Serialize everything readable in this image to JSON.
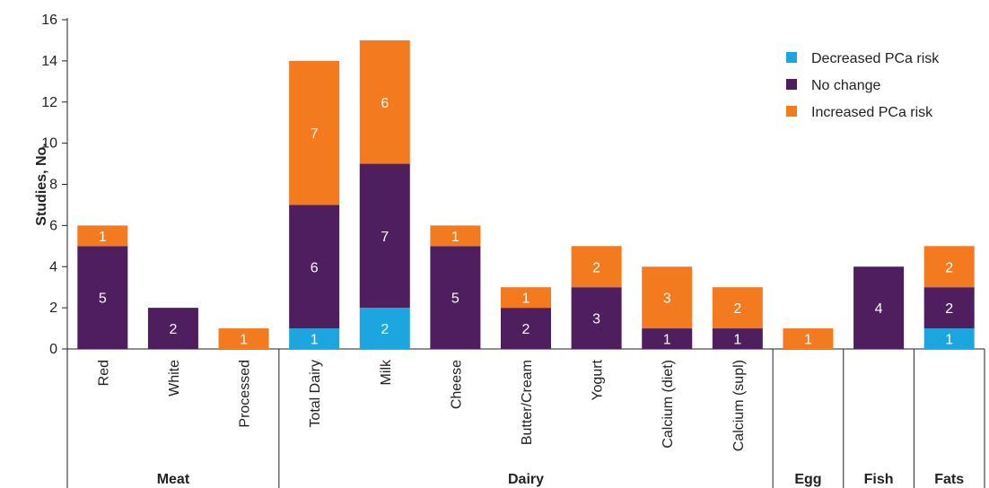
{
  "chart_data": {
    "type": "bar",
    "stacked": true,
    "ylabel": "Studies, No.",
    "ylim": [
      0,
      16
    ],
    "yticks": [
      0,
      2,
      4,
      6,
      8,
      10,
      12,
      14,
      16
    ],
    "categories": [
      "Red",
      "White",
      "Processed",
      "Total Dairy",
      "Milk",
      "Cheese",
      "Butter/Cream",
      "Yogurt",
      "Calcium (diet)",
      "Calcium (supl)",
      "",
      "",
      ""
    ],
    "groups": [
      {
        "name": "Meat",
        "start": 0,
        "end": 2
      },
      {
        "name": "Dairy",
        "start": 3,
        "end": 9
      },
      {
        "name": "Egg",
        "start": 10,
        "end": 10
      },
      {
        "name": "Fish",
        "start": 11,
        "end": 11
      },
      {
        "name": "Fats",
        "start": 12,
        "end": 12
      }
    ],
    "series": [
      {
        "name": "Decreased PCa risk",
        "color": "#1BA6DF",
        "values": [
          0,
          0,
          0,
          1,
          2,
          0,
          0,
          0,
          0,
          0,
          0,
          0,
          1
        ]
      },
      {
        "name": "No change",
        "color": "#4E1E5E",
        "values": [
          5,
          2,
          0,
          6,
          7,
          5,
          2,
          3,
          1,
          1,
          0,
          4,
          2
        ]
      },
      {
        "name": "Increased PCa risk",
        "color": "#F47A20",
        "values": [
          1,
          0,
          1,
          7,
          6,
          1,
          1,
          2,
          3,
          2,
          1,
          0,
          2
        ]
      }
    ],
    "legend_position": "top-right",
    "grid": false
  }
}
